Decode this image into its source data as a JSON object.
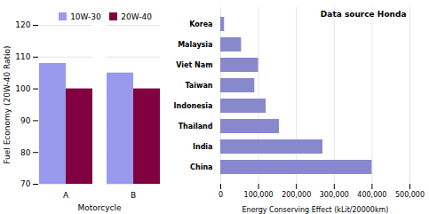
{
  "chart_data": [
    {
      "type": "bar",
      "categories": [
        "A",
        "B"
      ],
      "series": [
        {
          "name": "10W-30",
          "color": "#9999ee",
          "values": [
            108,
            105
          ]
        },
        {
          "name": "20W-40",
          "color": "#800040",
          "values": [
            100,
            100
          ]
        }
      ],
      "xlabel": "Motorcycle",
      "ylabel": "Fuel Economy (20W-40 Ratio)",
      "ylim": [
        70,
        120
      ],
      "yticks": [
        70,
        80,
        90,
        100,
        110,
        120
      ],
      "grid": true,
      "legend": "upper right"
    },
    {
      "type": "bar",
      "orientation": "horizontal",
      "categories": [
        "Korea",
        "Malaysia",
        "Viet Nam",
        "Taiwan",
        "Indonesia",
        "Thailand",
        "India",
        "China"
      ],
      "values": [
        10000,
        55000,
        100000,
        90000,
        120000,
        155000,
        270000,
        400000
      ],
      "color": "#8888cc",
      "xlabel": "Energy Conserving Effect (kLit/20000km)",
      "xlim": [
        0,
        500000
      ],
      "xticks": [
        0,
        {
          "value": 100000,
          "label": "100,000"
        },
        {
          "value": 200000,
          "label": "200,000"
        },
        {
          "value": 300000,
          "label": "300,000"
        },
        {
          "value": 400000,
          "label": "400,000"
        },
        {
          "value": 500000,
          "label": "500,000"
        }
      ],
      "grid": true,
      "annotation": "Data source Honda"
    }
  ]
}
